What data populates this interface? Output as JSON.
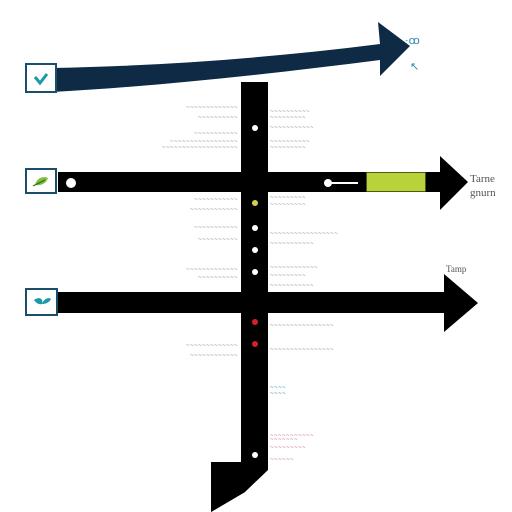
{
  "colors": {
    "background": "#ffffff",
    "top_arrow": "#0e2a44",
    "arrow": "#000000",
    "icon_border": "#1a4f6b",
    "icon_teal": "#1a9aa8",
    "icon_green": "#7fbf3a",
    "progress_fill": "#b8d23a",
    "progress_border": "#4b5a1d",
    "dot_white": "#ffffff",
    "dot_yellow": "#d9cf4a",
    "dot_red": "#d81e2a",
    "label_gray": "#8a8a8a",
    "label_teal": "#2d8aa8",
    "label_pink": "#c86a86"
  },
  "icons": [
    {
      "name": "check-icon",
      "color": "teal"
    },
    {
      "name": "leaf-icon",
      "color": "green"
    },
    {
      "name": "leaf-icon",
      "color": "teal"
    }
  ],
  "top_right_glyphs": {
    "line1": "·ꝏ",
    "line2": "↖"
  },
  "mid_right": {
    "line1": "Tarne",
    "line2": "gnurn"
  },
  "lower_right": {
    "line1": "Tamp"
  },
  "progress": {
    "fill": 1.0
  },
  "labels": {
    "left": [
      "~~~~~~~~~~~~~",
      "~~~~~~~~~~",
      "~~~~~~~~~~~",
      "~~~~~~~~~~~~~~~~~",
      "~~~~~~~~~~~~~~~~~~~",
      "~~~~~~~~~~~",
      "~~~~~~~~~~~~",
      "~~~~~~~~~~~",
      "~~~~~~~~~~",
      "~~~~~~~~~~~~~",
      "~~~~~~~~~~",
      "~~~~~~~~~~~~~",
      "~~~~~~~~~~~~"
    ],
    "right": [
      "~~~~~~~~~~",
      "~~~~~~~~~",
      "~~~~~~~~~~~",
      "~~~~~~~~~~",
      "~~~~~~~~~",
      "~~~~~~~~~",
      "~~~~~~~~~",
      "~~~~~~~~~~~~~~~~~",
      "~~~~~~~~~~~",
      "~~~~~~~~~~~~",
      "~~~~~~~~~",
      "~~~~~~~~~~~",
      "~~~~~~~~~~~~~~~~",
      "~~~~~~~~~~~~~~~~",
      "~~~~",
      "~~~~",
      "~~~~~~~~~~~",
      "~~~~~~~",
      "~~~~~~~~~",
      "~~~~~~"
    ]
  }
}
